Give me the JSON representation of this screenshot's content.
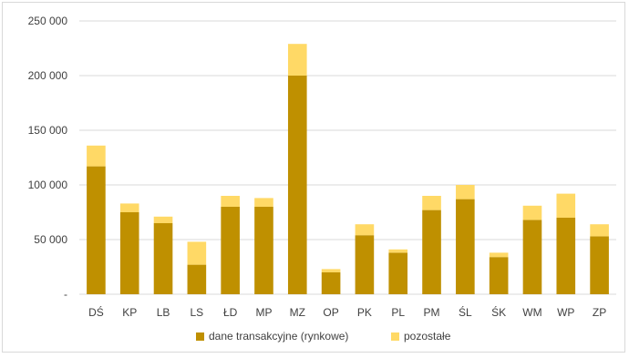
{
  "chart_data": {
    "type": "bar",
    "stacked": true,
    "categories": [
      "DŚ",
      "KP",
      "LB",
      "LS",
      "ŁD",
      "MP",
      "MZ",
      "OP",
      "PK",
      "PL",
      "PM",
      "ŚL",
      "ŚK",
      "WM",
      "WP",
      "ZP"
    ],
    "series": [
      {
        "name": "dane transakcyjne (rynkowe)",
        "color": "#bf9000",
        "values": [
          117000,
          75000,
          65000,
          27000,
          80000,
          80000,
          200000,
          20000,
          54000,
          38000,
          77000,
          87000,
          34000,
          68000,
          70000,
          53000
        ]
      },
      {
        "name": "pozostałe",
        "color": "#ffd966",
        "values": [
          19000,
          8000,
          6000,
          21000,
          10000,
          8000,
          29000,
          3000,
          10000,
          3000,
          13000,
          13000,
          4000,
          13000,
          22000,
          11000
        ]
      }
    ],
    "y_ticks": [
      "-",
      "50 000",
      "100 000",
      "150 000",
      "200 000",
      "250 000"
    ],
    "ylim": [
      0,
      250000
    ],
    "grid": true,
    "legend_position": "bottom"
  }
}
